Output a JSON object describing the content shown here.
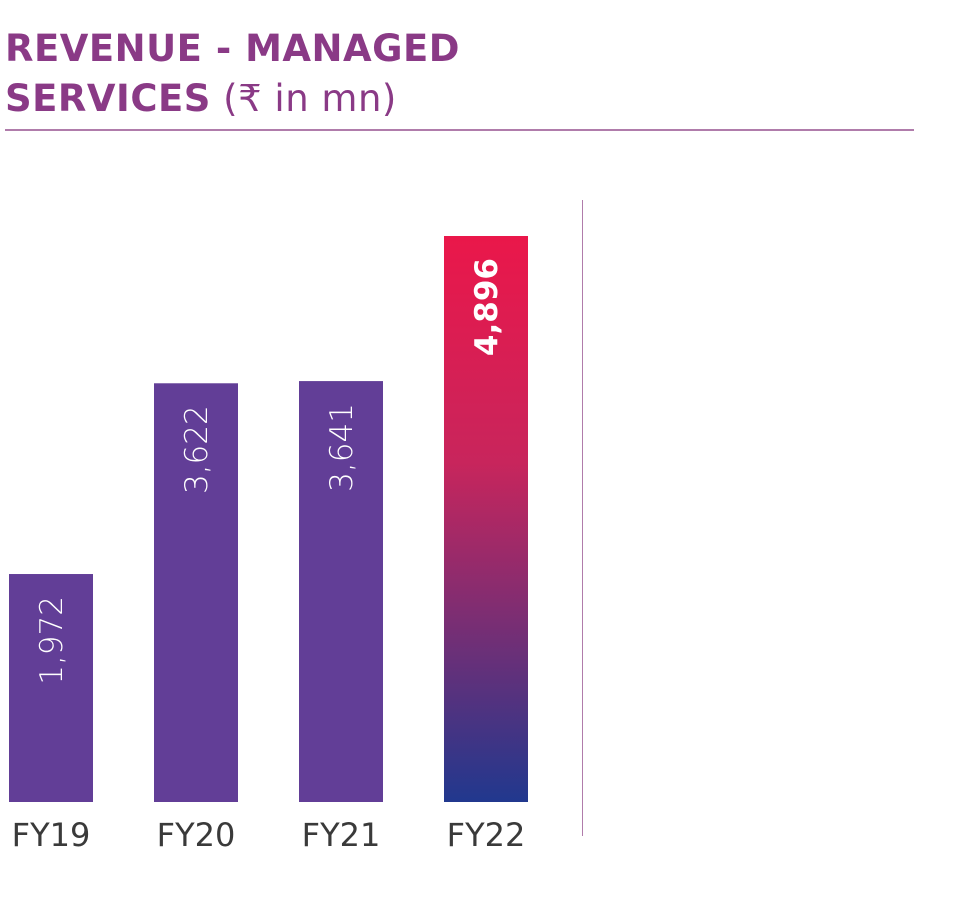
{
  "header": {
    "title_line1": "REVENUE - MANAGED",
    "title_line2": "SERVICES",
    "unit": "(₹ in mn)"
  },
  "chart_data": {
    "type": "bar",
    "title": "REVENUE - MANAGED SERVICES (₹ in mn)",
    "categories": [
      "FY19",
      "FY20",
      "FY21",
      "FY22"
    ],
    "values": [
      1972,
      3622,
      3641,
      4896
    ],
    "value_labels": [
      "1,972",
      "3,622",
      "3,641",
      "4,896"
    ],
    "highlight_index": 3,
    "colors": {
      "bar": "#623e97",
      "highlight_top": "#ea174a",
      "highlight_mid": "#c8255c",
      "highlight_bottom": "#21388e",
      "label": "#ffffff",
      "axis_text": "#3a3a3a"
    },
    "grid": false,
    "legend": "none"
  }
}
